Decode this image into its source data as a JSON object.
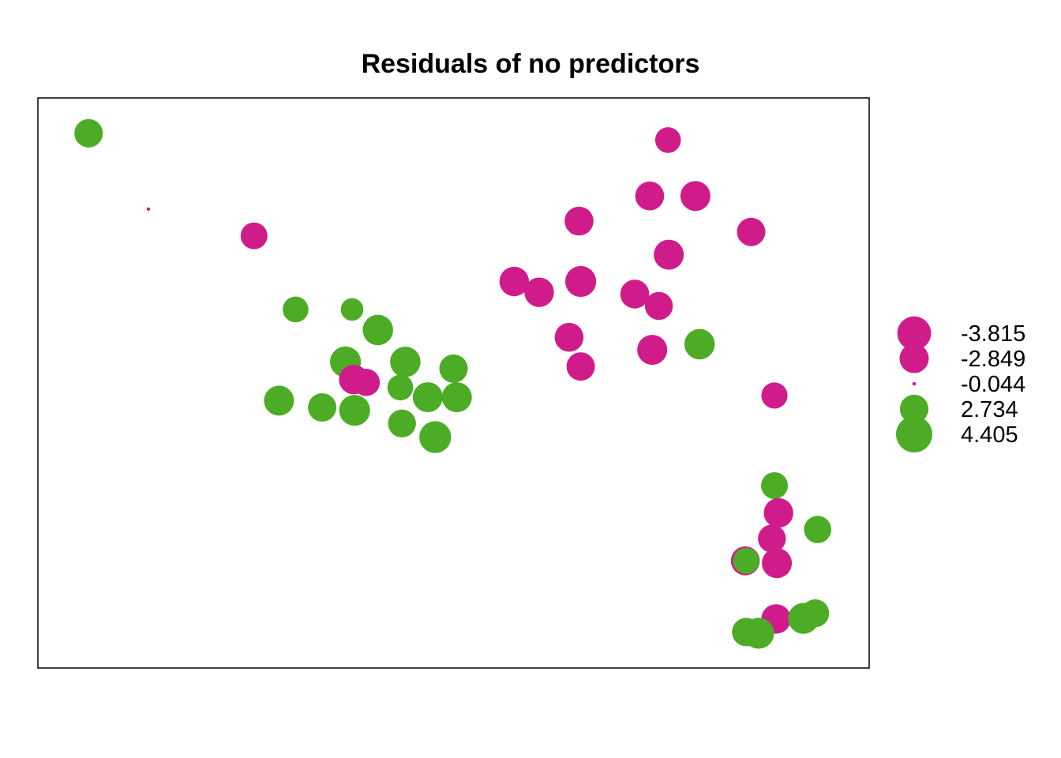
{
  "chart_data": {
    "type": "scatter",
    "title": "Residuals of no predictors",
    "xlabel": "",
    "ylabel": "",
    "xlim": [
      0,
      100
    ],
    "ylim": [
      0,
      100
    ],
    "axes": false,
    "grid": false,
    "legend_position": "right",
    "colors": {
      "negative": "#D01C8B",
      "positive": "#4DAC26"
    },
    "legend": [
      {
        "label": "-3.815",
        "value": -3.815
      },
      {
        "label": "-2.849",
        "value": -2.849
      },
      {
        "label": "-0.044",
        "value": -0.044
      },
      {
        "label": "2.734",
        "value": 2.734
      },
      {
        "label": "4.405",
        "value": 4.405
      }
    ],
    "points": [
      {
        "x": 6.1,
        "y": 93.8,
        "value": 2.7
      },
      {
        "x": 13.3,
        "y": 80.5,
        "value": -0.04
      },
      {
        "x": 26.0,
        "y": 75.8,
        "value": -2.4
      },
      {
        "x": 31.0,
        "y": 62.9,
        "value": 2.2
      },
      {
        "x": 37.8,
        "y": 62.9,
        "value": 1.7
      },
      {
        "x": 40.9,
        "y": 59.3,
        "value": 3.1
      },
      {
        "x": 37.0,
        "y": 53.7,
        "value": 3.2
      },
      {
        "x": 38.0,
        "y": 50.6,
        "value": -2.9
      },
      {
        "x": 39.5,
        "y": 50.1,
        "value": -2.5
      },
      {
        "x": 44.2,
        "y": 53.7,
        "value": 3.1
      },
      {
        "x": 50.0,
        "y": 52.5,
        "value": 2.7
      },
      {
        "x": 43.6,
        "y": 49.2,
        "value": 2.2
      },
      {
        "x": 46.9,
        "y": 47.5,
        "value": 3.0
      },
      {
        "x": 50.4,
        "y": 47.5,
        "value": 3.0
      },
      {
        "x": 29.0,
        "y": 46.9,
        "value": 3.0
      },
      {
        "x": 34.2,
        "y": 45.7,
        "value": 2.7
      },
      {
        "x": 38.1,
        "y": 45.2,
        "value": 3.2
      },
      {
        "x": 43.8,
        "y": 42.9,
        "value": 2.6
      },
      {
        "x": 47.8,
        "y": 40.5,
        "value": 3.4
      },
      {
        "x": 75.8,
        "y": 92.6,
        "value": -2.2
      },
      {
        "x": 73.6,
        "y": 82.8,
        "value": -2.8
      },
      {
        "x": 79.1,
        "y": 82.8,
        "value": -3.0
      },
      {
        "x": 65.1,
        "y": 78.4,
        "value": -2.8
      },
      {
        "x": 85.8,
        "y": 76.5,
        "value": -2.7
      },
      {
        "x": 75.9,
        "y": 72.5,
        "value": -3.0
      },
      {
        "x": 57.3,
        "y": 67.8,
        "value": -2.9
      },
      {
        "x": 60.3,
        "y": 65.9,
        "value": -2.9
      },
      {
        "x": 65.3,
        "y": 67.8,
        "value": -3.2
      },
      {
        "x": 71.8,
        "y": 65.6,
        "value": -2.8
      },
      {
        "x": 74.7,
        "y": 63.5,
        "value": -2.6
      },
      {
        "x": 63.9,
        "y": 58.0,
        "value": -2.8
      },
      {
        "x": 79.6,
        "y": 56.8,
        "value": 3.1
      },
      {
        "x": 73.9,
        "y": 55.8,
        "value": -3.0
      },
      {
        "x": 65.3,
        "y": 52.9,
        "value": -2.7
      },
      {
        "x": 88.6,
        "y": 47.8,
        "value": -2.3
      },
      {
        "x": 88.6,
        "y": 32.0,
        "value": 2.4
      },
      {
        "x": 89.1,
        "y": 27.2,
        "value": -2.9
      },
      {
        "x": 93.8,
        "y": 24.3,
        "value": 2.5
      },
      {
        "x": 88.3,
        "y": 22.7,
        "value": -2.6
      },
      {
        "x": 85.1,
        "y": 18.8,
        "value": -2.8
      },
      {
        "x": 88.9,
        "y": 18.4,
        "value": -3.0
      },
      {
        "x": 85.2,
        "y": 18.8,
        "value": 2.3
      },
      {
        "x": 88.8,
        "y": 8.6,
        "value": -2.9
      },
      {
        "x": 93.5,
        "y": 9.6,
        "value": 2.6
      },
      {
        "x": 92.1,
        "y": 8.7,
        "value": 3.2
      },
      {
        "x": 85.2,
        "y": 6.3,
        "value": 2.7
      },
      {
        "x": 86.7,
        "y": 6.1,
        "value": 3.2
      }
    ]
  }
}
